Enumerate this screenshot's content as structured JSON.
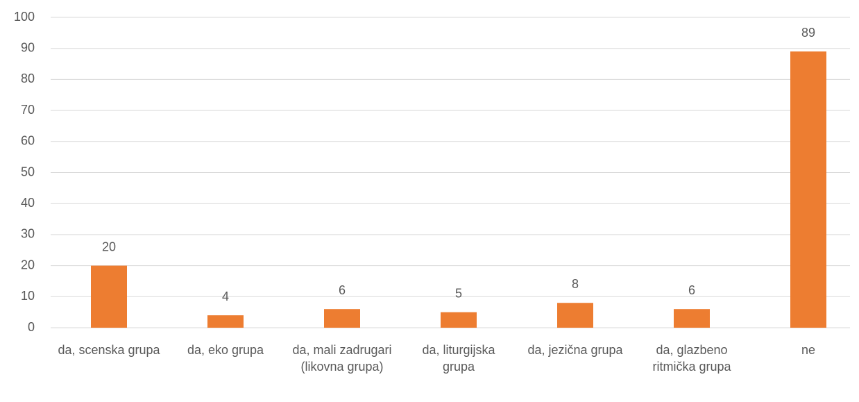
{
  "chart_data": {
    "type": "bar",
    "categories": [
      "da, scenska grupa",
      "da, eko grupa",
      "da, mali zadrugari (likovna grupa)",
      "da, liturgijska grupa",
      "da, jezična grupa",
      "da, glazbeno ritmička grupa",
      "ne"
    ],
    "values": [
      20,
      4,
      6,
      5,
      8,
      6,
      89
    ],
    "color": "#ed7d31",
    "ylim": [
      0,
      100
    ],
    "yticks": [
      0,
      10,
      20,
      30,
      40,
      50,
      60,
      70,
      80,
      90,
      100
    ],
    "grid": true
  }
}
